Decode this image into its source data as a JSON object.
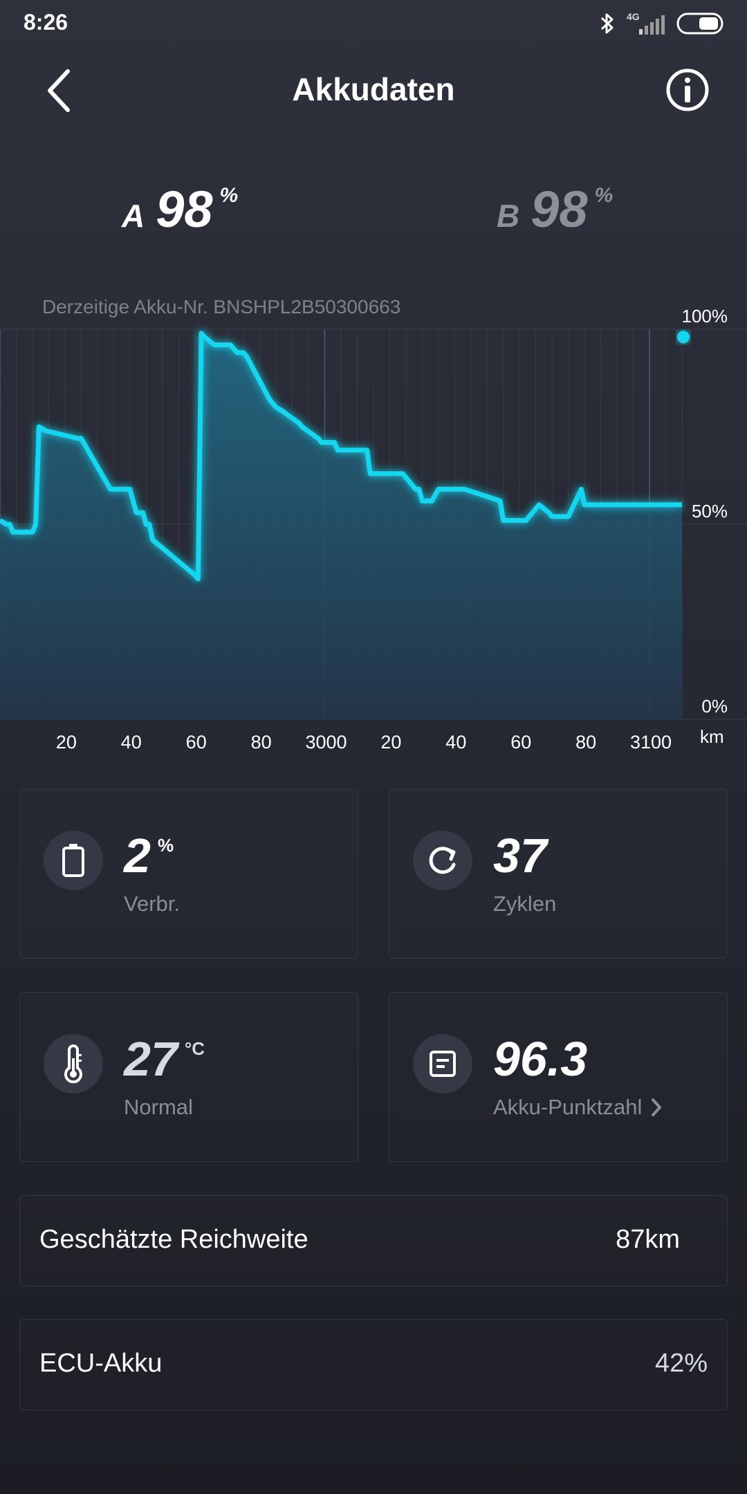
{
  "status": {
    "time": "8:26",
    "network": "4G"
  },
  "header": {
    "title": "Akkudaten"
  },
  "batteries": [
    {
      "letter": "A",
      "value": "98",
      "unit": "%"
    },
    {
      "letter": "B",
      "value": "98",
      "unit": "%"
    }
  ],
  "current_battery_text": "Derzeitige Akku-Nr. BNSHPL2B50300663",
  "chart_data": {
    "type": "area",
    "y_tick_labels": [
      "100%",
      "50%",
      "0%"
    ],
    "ylim": [
      0,
      100
    ],
    "x_tick_labels": [
      "20",
      "40",
      "60",
      "80",
      "3000",
      "20",
      "40",
      "60",
      "80",
      "3100"
    ],
    "x_unit": "km",
    "xlim": [
      2900,
      3110
    ],
    "grid": true,
    "x": [
      2900,
      2902,
      2903,
      2904,
      2910,
      2911,
      2912,
      2914,
      2924,
      2925,
      2934,
      2935,
      2936,
      2937,
      2938,
      2940,
      2942,
      2944,
      2945,
      2946,
      2947,
      2960,
      2961,
      2962,
      2963,
      2966,
      2967,
      2968,
      2970,
      2971,
      2972,
      2973,
      2975,
      2976,
      2983,
      2984,
      2985,
      2987,
      2992,
      2993,
      2998,
      2999,
      3003,
      3004,
      3013,
      3014,
      3024,
      3025,
      3026,
      3028,
      3029,
      3030,
      3031,
      3032,
      3033,
      3035,
      3036,
      3042,
      3043,
      3054,
      3055,
      3062,
      3063,
      3064,
      3065,
      3066,
      3069,
      3070,
      3074,
      3075,
      3079,
      3080,
      3110
    ],
    "values": [
      51,
      50,
      50,
      48,
      48,
      50,
      75,
      74,
      72,
      72,
      59,
      59,
      59,
      59,
      59,
      59,
      53,
      53,
      50,
      50,
      46,
      37,
      36,
      99,
      98,
      96,
      96,
      96,
      96,
      96,
      95,
      94,
      94,
      93,
      82,
      81,
      80,
      79,
      76,
      75,
      72,
      71,
      71,
      69,
      69,
      63,
      63,
      62,
      61,
      59,
      59,
      56,
      56,
      56,
      56,
      59,
      59,
      59,
      59,
      56,
      51,
      51,
      52,
      53,
      54,
      55,
      53,
      52,
      52,
      52,
      59,
      55,
      55
    ],
    "current_marker": [
      3110,
      98
    ]
  },
  "stats": {
    "consumption": {
      "value": "2",
      "unit": "%",
      "label": "Verbr."
    },
    "cycles": {
      "value": "37",
      "label": "Zyklen"
    },
    "temperature": {
      "value": "27",
      "unit": "°C",
      "label": "Normal"
    },
    "score": {
      "value": "96.3",
      "label": "Akku-Punktzahl"
    }
  },
  "range": {
    "label": "Geschätzte Reichweite",
    "value": "87km"
  },
  "ecu": {
    "label": "ECU-Akku",
    "value": "42%"
  },
  "colors": {
    "accent": "#14d6ef",
    "background": "#2b2e38",
    "card_border": "#33363f"
  }
}
